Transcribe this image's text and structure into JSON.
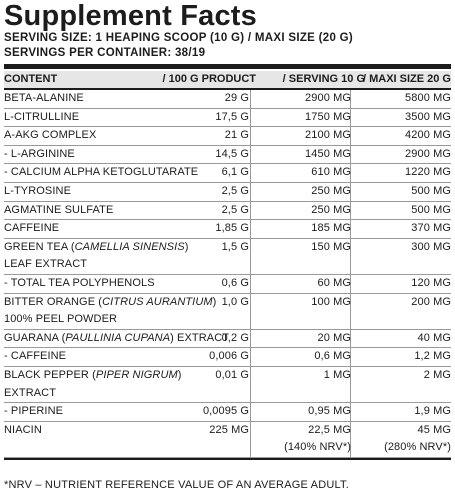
{
  "title": "Supplement Facts",
  "serving_size": "SERVING SIZE: 1 HEAPING SCOOP (10 G) / MAXI SIZE (20 G)",
  "servings": "SERVINGS PER CONTAINER: 38/19",
  "columns": {
    "content": "CONTENT",
    "per100": "/ 100 G PRODUCT",
    "serving": "/ SERVING 10 G",
    "maxi": "/ MAXI SIZE 20 G"
  },
  "rows": [
    {
      "name": "BETA-ALANINE",
      "per100": "29 G",
      "serving": "2900 MG",
      "maxi": "5800 MG"
    },
    {
      "name": "L-CITRULLINE",
      "per100": "17,5 G",
      "serving": "1750 MG",
      "maxi": "3500 MG"
    },
    {
      "name": "A-AKG COMPLEX",
      "per100": "21 G",
      "serving": "2100 MG",
      "maxi": "4200 MG"
    },
    {
      "name": "- L-ARGININE",
      "per100": "14,5 G",
      "serving": "1450 MG",
      "maxi": "2900 MG"
    },
    {
      "name": "- CALCIUM ALPHA KETOGLUTARATE",
      "per100": "6,1 G",
      "serving": "610 MG",
      "maxi": "1220 MG"
    },
    {
      "name": "L-TYROSINE",
      "per100": "2,5 G",
      "serving": "250 MG",
      "maxi": "500 MG"
    },
    {
      "name": "AGMATINE SULFATE",
      "per100": "2,5 G",
      "serving": "250 MG",
      "maxi": "500 MG"
    },
    {
      "name": "CAFFEINE",
      "per100": "1,85 G",
      "serving": "185 MG",
      "maxi": "370 MG"
    },
    {
      "name_a": "GREEN TEA (",
      "name_i": "CAMELLIA SINENSIS",
      "name_b": ")",
      "name2": "LEAF EXTRACT",
      "per100": "1,5 G",
      "serving": "150 MG",
      "maxi": "300 MG"
    },
    {
      "name": "- TOTAL TEA POLYPHENOLS",
      "per100": "0,6 G",
      "serving": "60 MG",
      "maxi": "120 MG"
    },
    {
      "name_a": "BITTER ORANGE (",
      "name_i": "CITRUS AURANTIUM",
      "name_b": ")",
      "name2": "100% PEEL POWDER",
      "per100": "1,0 G",
      "serving": "100 MG",
      "maxi": "200 MG"
    },
    {
      "name_a": "GUARANA (",
      "name_i": "PAULLINIA CUPANA",
      "name_b": ") EXTRACT",
      "per100": "0,2 G",
      "serving": "20 MG",
      "maxi": "40 MG"
    },
    {
      "name": "- CAFFEINE",
      "per100": "0,006 G",
      "serving": "0,6 MG",
      "maxi": "1,2 MG"
    },
    {
      "name_a": "BLACK PEPPER (",
      "name_i": "PIPER NIGRUM",
      "name_b": ")",
      "name2": "EXTRACT",
      "per100": "0,01 G",
      "serving": "1 MG",
      "maxi": "2 MG"
    },
    {
      "name": "- PIPERINE",
      "per100": "0,0095 G",
      "serving": "0,95 MG",
      "maxi": "1,9 MG"
    },
    {
      "name": "NIACIN",
      "per100": "225 MG",
      "serving": "22,5 MG",
      "maxi": "45 MG",
      "serving2": "(140% NRV*)",
      "maxi2": "(280% NRV*)"
    }
  ],
  "footnote": "*NRV – NUTRIENT REFERENCE VALUE OF AN AVERAGE ADULT."
}
